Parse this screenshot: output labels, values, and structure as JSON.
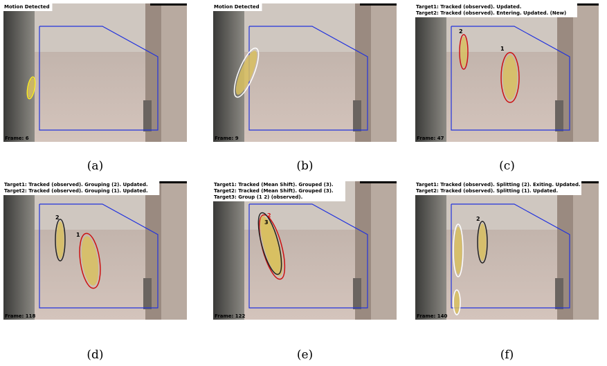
{
  "panels": [
    {
      "caption": "(a)",
      "lines": [
        "Motion Detected"
      ],
      "frame": "Frame: 6",
      "ids": []
    },
    {
      "caption": "(b)",
      "lines": [
        "Motion Detected"
      ],
      "frame": "Frame: 9",
      "ids": []
    },
    {
      "caption": "(c)",
      "lines": [
        "Target1: Tracked (observed). Updated.",
        "Target2: Tracked (observed). Entering. Updated. (New)"
      ],
      "frame": "Frame: 47",
      "ids": [
        "1",
        "2"
      ]
    },
    {
      "caption": "(d)",
      "lines": [
        "Target1: Tracked (observed). Grouping (2). Updated.",
        "Target2: Tracked (observed). Grouping (1). Updated."
      ],
      "frame": "Frame: 118",
      "ids": [
        "2",
        "1"
      ]
    },
    {
      "caption": "(e)",
      "lines": [
        "Target1: Tracked (Mean Shift). Grouped (3).",
        "Target2: Tracked (Mean Shift). Grouped (3).",
        "Target3: Group (1 2) (observed)."
      ],
      "frame": "Frame: 122",
      "ids": [
        "2",
        "3"
      ]
    },
    {
      "caption": "(f)",
      "lines": [
        "Target1: Tracked (observed). Splitting (2). Exiting. Updated.",
        "Target2: Tracked (observed). Splitting (1). Updated."
      ],
      "frame": "Frame: 140",
      "ids": [
        "2"
      ]
    }
  ]
}
